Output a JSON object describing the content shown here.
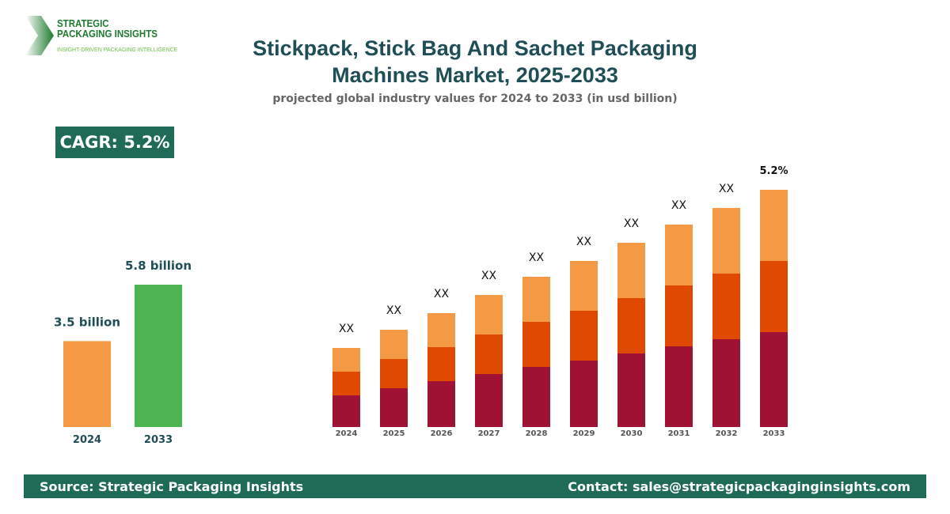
{
  "logo": {
    "line1": "STRATEGIC",
    "line2": "PACKAGING INSIGHTS",
    "tagline": "INSIGHT-DRIVEN PACKAGING INTELLIGENCE"
  },
  "title_line1": "Stickpack, Stick Bag And Sachet Packaging",
  "title_line2": "Machines Market, 2025-2033",
  "subtitle": "projected global industry values for 2024 to 2033 (in usd billion)",
  "cagr": "CAGR: 5.2%",
  "footer": {
    "source": "Source: Strategic Packaging Insights",
    "contact": "Contact: sales@strategicpackaginginsights.com"
  },
  "chart_data": [
    {
      "type": "bar",
      "categories": [
        "2024",
        "2033"
      ],
      "values": [
        3.5,
        5.8
      ],
      "data_labels": [
        "3.5 billion",
        "5.8 billion"
      ],
      "colors": [
        "#f49a45",
        "#4cb450"
      ]
    },
    {
      "type": "bar",
      "stacked": true,
      "categories": [
        "2024",
        "2025",
        "2026",
        "2027",
        "2028",
        "2029",
        "2030",
        "2031",
        "2032",
        "2033"
      ],
      "series": [
        {
          "color": "#a01233",
          "values": [
            40,
            49,
            58,
            67,
            76,
            84,
            93,
            102,
            111,
            120
          ]
        },
        {
          "color": "#e04a00",
          "values": [
            30,
            37,
            43,
            50,
            57,
            63,
            70,
            77,
            83,
            90
          ]
        },
        {
          "color": "#f49a45",
          "values": [
            30,
            37,
            43,
            50,
            57,
            63,
            70,
            77,
            83,
            90
          ]
        }
      ],
      "data_labels": [
        "XX",
        "XX",
        "XX",
        "XX",
        "XX",
        "XX",
        "XX",
        "XX",
        "XX",
        "5.2%"
      ]
    }
  ]
}
